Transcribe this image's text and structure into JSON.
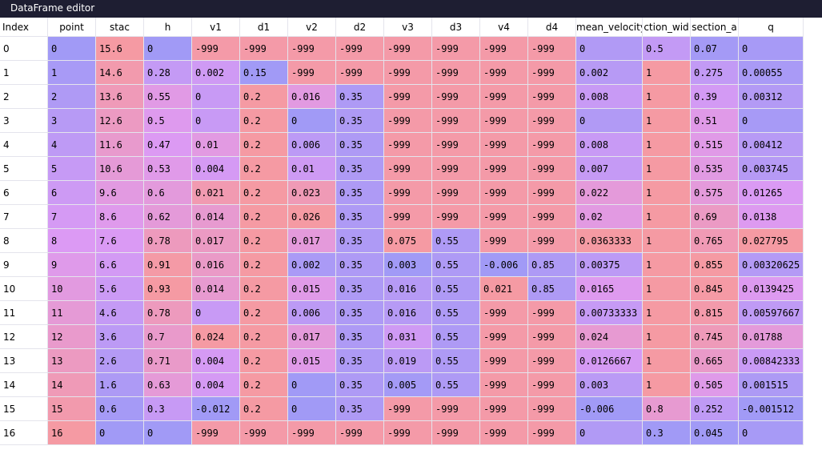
{
  "window": {
    "title": "DataFrame editor"
  },
  "table": {
    "index_header": "Index",
    "columns": [
      "point",
      "stac",
      "h",
      "v1",
      "d1",
      "v2",
      "d2",
      "v3",
      "d3",
      "v4",
      "d4",
      "mean_velocity",
      "ction_wid",
      "section_a",
      "q"
    ],
    "index": [
      "0",
      "1",
      "2",
      "3",
      "4",
      "5",
      "6",
      "7",
      "8",
      "9",
      "10",
      "11",
      "12",
      "13",
      "14",
      "15",
      "16"
    ],
    "rows": [
      [
        "0",
        "15.6",
        "0",
        "-999",
        "-999",
        "-999",
        "-999",
        "-999",
        "-999",
        "-999",
        "-999",
        "0",
        "0.5",
        "0.07",
        "0"
      ],
      [
        "1",
        "14.6",
        "0.28",
        "0.002",
        "0.15",
        "-999",
        "-999",
        "-999",
        "-999",
        "-999",
        "-999",
        "0.002",
        "1",
        "0.275",
        "0.00055"
      ],
      [
        "2",
        "13.6",
        "0.55",
        "0",
        "0.2",
        "0.016",
        "0.35",
        "-999",
        "-999",
        "-999",
        "-999",
        "0.008",
        "1",
        "0.39",
        "0.00312"
      ],
      [
        "3",
        "12.6",
        "0.5",
        "0",
        "0.2",
        "0",
        "0.35",
        "-999",
        "-999",
        "-999",
        "-999",
        "0",
        "1",
        "0.51",
        "0"
      ],
      [
        "4",
        "11.6",
        "0.47",
        "0.01",
        "0.2",
        "0.006",
        "0.35",
        "-999",
        "-999",
        "-999",
        "-999",
        "0.008",
        "1",
        "0.515",
        "0.00412"
      ],
      [
        "5",
        "10.6",
        "0.53",
        "0.004",
        "0.2",
        "0.01",
        "0.35",
        "-999",
        "-999",
        "-999",
        "-999",
        "0.007",
        "1",
        "0.535",
        "0.003745"
      ],
      [
        "6",
        "9.6",
        "0.6",
        "0.021",
        "0.2",
        "0.023",
        "0.35",
        "-999",
        "-999",
        "-999",
        "-999",
        "0.022",
        "1",
        "0.575",
        "0.01265"
      ],
      [
        "7",
        "8.6",
        "0.62",
        "0.014",
        "0.2",
        "0.026",
        "0.35",
        "-999",
        "-999",
        "-999",
        "-999",
        "0.02",
        "1",
        "0.69",
        "0.0138"
      ],
      [
        "8",
        "7.6",
        "0.78",
        "0.017",
        "0.2",
        "0.017",
        "0.35",
        "0.075",
        "0.55",
        "-999",
        "-999",
        "0.0363333",
        "1",
        "0.765",
        "0.027795"
      ],
      [
        "9",
        "6.6",
        "0.91",
        "0.016",
        "0.2",
        "0.002",
        "0.35",
        "0.003",
        "0.55",
        "-0.006",
        "0.85",
        "0.00375",
        "1",
        "0.855",
        "0.00320625"
      ],
      [
        "10",
        "5.6",
        "0.93",
        "0.014",
        "0.2",
        "0.015",
        "0.35",
        "0.016",
        "0.55",
        "0.021",
        "0.85",
        "0.0165",
        "1",
        "0.845",
        "0.0139425"
      ],
      [
        "11",
        "4.6",
        "0.78",
        "0",
        "0.2",
        "0.006",
        "0.35",
        "0.016",
        "0.55",
        "-999",
        "-999",
        "0.00733333",
        "1",
        "0.815",
        "0.00597667"
      ],
      [
        "12",
        "3.6",
        "0.7",
        "0.024",
        "0.2",
        "0.017",
        "0.35",
        "0.031",
        "0.55",
        "-999",
        "-999",
        "0.024",
        "1",
        "0.745",
        "0.01788"
      ],
      [
        "13",
        "2.6",
        "0.71",
        "0.004",
        "0.2",
        "0.015",
        "0.35",
        "0.019",
        "0.55",
        "-999",
        "-999",
        "0.0126667",
        "1",
        "0.665",
        "0.00842333"
      ],
      [
        "14",
        "1.6",
        "0.63",
        "0.004",
        "0.2",
        "0",
        "0.35",
        "0.005",
        "0.55",
        "-999",
        "-999",
        "0.003",
        "1",
        "0.505",
        "0.001515"
      ],
      [
        "15",
        "0.6",
        "0.3",
        "-0.012",
        "0.2",
        "0",
        "0.35",
        "-999",
        "-999",
        "-999",
        "-999",
        "-0.006",
        "0.8",
        "0.252",
        "-0.001512"
      ],
      [
        "16",
        "0",
        "0",
        "-999",
        "-999",
        "-999",
        "-999",
        "-999",
        "-999",
        "-999",
        "-999",
        "0",
        "0.3",
        "0.045",
        "0"
      ]
    ]
  },
  "colors": {
    "heat_low": "#9a9af6",
    "heat_high": "#f89a9a",
    "heat_mid": "#dc9af4",
    "titlebar": "#1e1e32"
  }
}
